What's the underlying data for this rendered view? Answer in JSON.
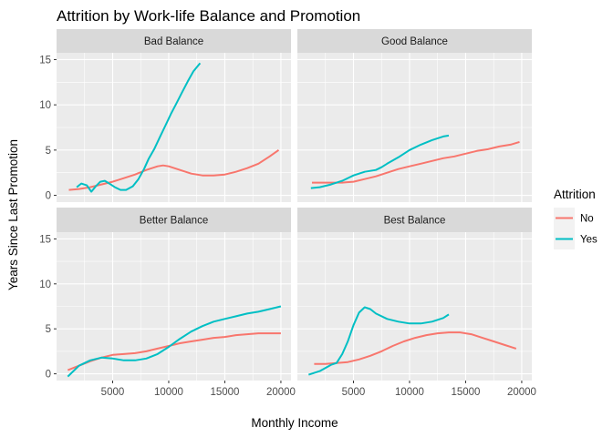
{
  "chart_data": {
    "type": "line",
    "title": "Attrition by Work-life Balance and Promotion",
    "xlabel": "Monthly Income",
    "ylabel": "Years Since Last Promotion",
    "xlim": [
      0,
      20900
    ],
    "ylim": [
      -0.75,
      15.75
    ],
    "x_ticks": [
      5000,
      10000,
      15000,
      20000
    ],
    "x_tick_labels": [
      "5000",
      "10000",
      "15000",
      "20000"
    ],
    "y_ticks": [
      0,
      5,
      10,
      15
    ],
    "y_tick_labels": [
      "0",
      "5",
      "10",
      "15"
    ],
    "grid": true,
    "legend": {
      "title": "Attrition",
      "placement": "right",
      "entries": [
        {
          "name": "No",
          "color": "#F8766D"
        },
        {
          "name": "Yes",
          "color": "#00BFC4"
        }
      ]
    },
    "colors": {
      "panel_bg": "#EBEBEB",
      "strip_bg": "#D9D9D9",
      "grid_major": "#FFFFFF",
      "tick": "#333333"
    },
    "facets": [
      {
        "label": "Bad Balance",
        "series": [
          {
            "name": "No",
            "x": [
              1100,
              2000,
              3000,
              4000,
              5000,
              6000,
              7000,
              8000,
              9000,
              9500,
              10000,
              11000,
              12000,
              13000,
              14000,
              15000,
              16000,
              17000,
              18000,
              19000,
              19800
            ],
            "y": [
              0.6,
              0.7,
              0.9,
              1.2,
              1.5,
              1.9,
              2.3,
              2.8,
              3.2,
              3.3,
              3.2,
              2.8,
              2.4,
              2.2,
              2.2,
              2.3,
              2.6,
              3.0,
              3.5,
              4.3,
              5.0
            ]
          },
          {
            "name": "Yes",
            "x": [
              1800,
              2200,
              2700,
              3100,
              3500,
              3900,
              4300,
              4700,
              5200,
              5700,
              6200,
              6800,
              7300,
              7800,
              8200,
              8700,
              9200,
              9700,
              10200,
              10700,
              11200,
              11700,
              12200,
              12800
            ],
            "y": [
              0.9,
              1.3,
              1.1,
              0.4,
              1.0,
              1.5,
              1.6,
              1.3,
              0.9,
              0.6,
              0.6,
              1.0,
              1.8,
              2.9,
              4.0,
              5.1,
              6.4,
              7.7,
              9.0,
              10.2,
              11.4,
              12.6,
              13.7,
              14.6
            ]
          }
        ]
      },
      {
        "label": "Good Balance",
        "series": [
          {
            "name": "No",
            "x": [
              1300,
              2000,
              3000,
              4000,
              5000,
              6000,
              7000,
              8000,
              9000,
              10000,
              11000,
              12000,
              13000,
              14000,
              15000,
              16000,
              17000,
              18000,
              19000,
              19800
            ],
            "y": [
              1.4,
              1.4,
              1.4,
              1.4,
              1.5,
              1.8,
              2.1,
              2.5,
              2.9,
              3.2,
              3.5,
              3.8,
              4.1,
              4.3,
              4.6,
              4.9,
              5.1,
              5.4,
              5.6,
              5.9
            ]
          },
          {
            "name": "Yes",
            "x": [
              1200,
              2000,
              3000,
              4000,
              5000,
              6000,
              7000,
              7500,
              8000,
              9000,
              10000,
              11000,
              12000,
              13000,
              13500
            ],
            "y": [
              0.8,
              0.9,
              1.2,
              1.6,
              2.2,
              2.6,
              2.8,
              3.1,
              3.5,
              4.2,
              5.0,
              5.6,
              6.1,
              6.5,
              6.6
            ]
          }
        ]
      },
      {
        "label": "Better Balance",
        "series": [
          {
            "name": "No",
            "x": [
              1000,
              2000,
              3000,
              4000,
              5000,
              6000,
              7000,
              8000,
              9000,
              10000,
              11000,
              12000,
              13000,
              14000,
              15000,
              16000,
              17000,
              18000,
              19000,
              20000
            ],
            "y": [
              0.4,
              0.9,
              1.4,
              1.8,
              2.1,
              2.2,
              2.3,
              2.5,
              2.8,
              3.1,
              3.4,
              3.6,
              3.8,
              4.0,
              4.1,
              4.3,
              4.4,
              4.5,
              4.5,
              4.5
            ]
          },
          {
            "name": "Yes",
            "x": [
              1000,
              2000,
              3000,
              4000,
              5000,
              6000,
              7000,
              8000,
              9000,
              10000,
              11000,
              12000,
              13000,
              14000,
              15000,
              16000,
              17000,
              18000,
              19000,
              20000
            ],
            "y": [
              -0.3,
              0.9,
              1.5,
              1.8,
              1.7,
              1.5,
              1.5,
              1.7,
              2.2,
              3.0,
              3.9,
              4.7,
              5.3,
              5.8,
              6.1,
              6.4,
              6.7,
              6.9,
              7.2,
              7.5
            ]
          }
        ]
      },
      {
        "label": "Best Balance",
        "series": [
          {
            "name": "No",
            "x": [
              1500,
              2500,
              3500,
              4500,
              5500,
              6500,
              7500,
              8500,
              9500,
              10500,
              11500,
              12500,
              13500,
              14500,
              15500,
              16500,
              17500,
              18500,
              19500
            ],
            "y": [
              1.1,
              1.1,
              1.2,
              1.3,
              1.6,
              2.0,
              2.5,
              3.1,
              3.6,
              4.0,
              4.3,
              4.5,
              4.6,
              4.6,
              4.4,
              4.0,
              3.6,
              3.2,
              2.8
            ]
          },
          {
            "name": "Yes",
            "x": [
              1000,
              2000,
              3000,
              3500,
              4000,
              4500,
              5000,
              5500,
              6000,
              6500,
              7000,
              8000,
              9000,
              10000,
              11000,
              12000,
              13000,
              13500
            ],
            "y": [
              -0.1,
              0.3,
              1.0,
              1.2,
              2.2,
              3.6,
              5.4,
              6.8,
              7.4,
              7.2,
              6.7,
              6.1,
              5.8,
              5.6,
              5.6,
              5.8,
              6.2,
              6.6
            ]
          }
        ]
      }
    ]
  }
}
